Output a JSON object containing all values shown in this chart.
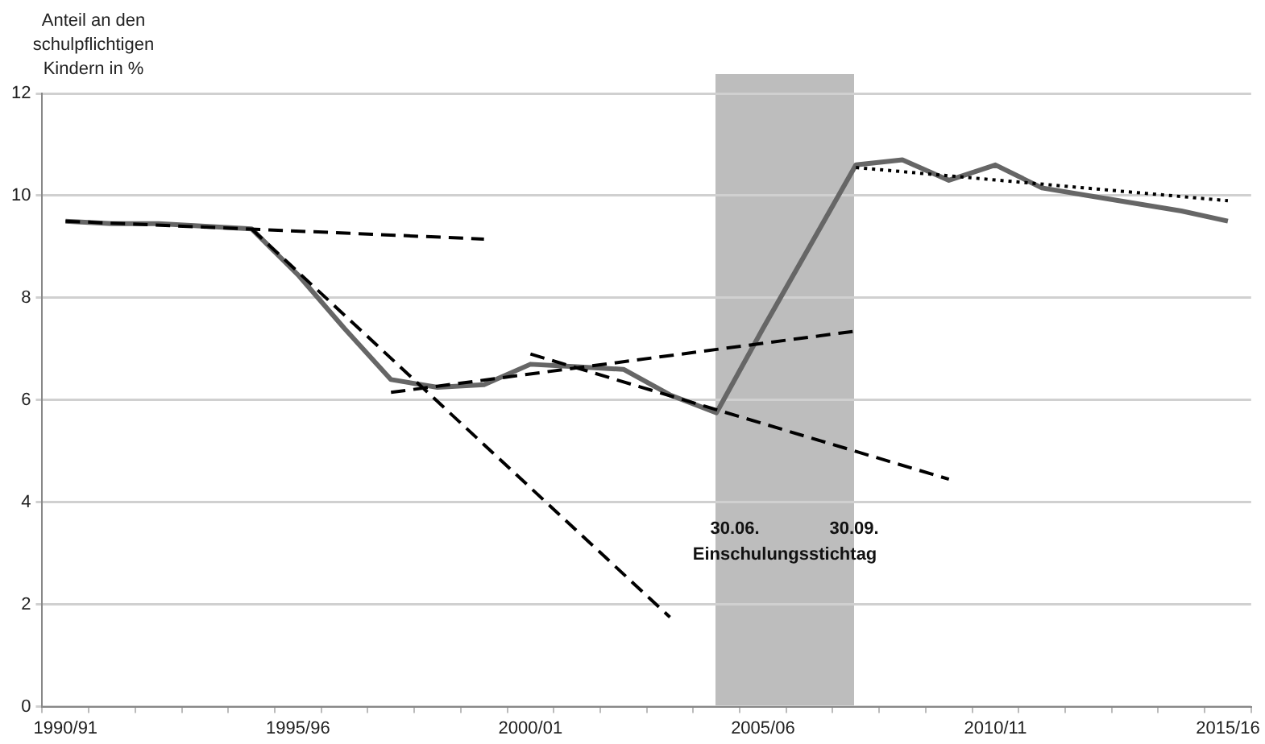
{
  "chart_data": {
    "type": "line",
    "ylabel": "Anteil an den schulpflichtigen Kindern in %",
    "categories": [
      "1990/91",
      null,
      null,
      null,
      null,
      "1995/96",
      null,
      null,
      null,
      null,
      "2000/01",
      null,
      null,
      null,
      null,
      "2005/06",
      null,
      null,
      null,
      null,
      "2010/11",
      null,
      null,
      null,
      null,
      "2015/16"
    ],
    "series": [
      {
        "color": "#666666",
        "line_style": "solid",
        "values": [
          9.5,
          9.45,
          9.45,
          9.4,
          9.35,
          8.45,
          7.4,
          6.4,
          6.25,
          6.3,
          6.7,
          6.65,
          6.6,
          6.1,
          5.75,
          7.4,
          9.0,
          10.6,
          10.7,
          10.3,
          10.6,
          10.15,
          10.0,
          9.85,
          9.7,
          9.5
        ]
      },
      {
        "color": "#000000",
        "line_style": "dashed",
        "values": [
          9.5,
          null,
          null,
          null,
          null,
          null,
          null,
          null,
          null,
          9.15,
          null,
          null,
          null,
          null,
          null,
          null,
          null,
          null,
          null,
          null,
          null,
          null,
          null,
          null,
          null,
          null
        ]
      },
      {
        "color": "#000000",
        "line_style": "dashed",
        "values": [
          null,
          null,
          null,
          null,
          9.35,
          null,
          null,
          null,
          null,
          null,
          null,
          null,
          null,
          1.75,
          null,
          null,
          null,
          null,
          null,
          null,
          null,
          null,
          null,
          null,
          null,
          null
        ]
      },
      {
        "color": "#000000",
        "line_style": "dashed",
        "values": [
          null,
          null,
          null,
          null,
          null,
          null,
          null,
          6.15,
          null,
          null,
          null,
          null,
          null,
          null,
          null,
          null,
          null,
          7.35,
          null,
          null,
          null,
          null,
          null,
          null,
          null,
          null
        ]
      },
      {
        "color": "#000000",
        "line_style": "dashed",
        "values": [
          null,
          null,
          null,
          null,
          null,
          null,
          null,
          null,
          null,
          null,
          6.9,
          null,
          null,
          null,
          null,
          null,
          null,
          null,
          null,
          4.45,
          null,
          null,
          null,
          null,
          null,
          null
        ]
      },
      {
        "color": "#000000",
        "line_style": "dotted",
        "values": [
          null,
          null,
          null,
          null,
          null,
          null,
          null,
          null,
          null,
          null,
          null,
          null,
          null,
          null,
          null,
          null,
          null,
          10.55,
          null,
          null,
          null,
          null,
          null,
          null,
          null,
          9.9
        ]
      }
    ],
    "ylim": [
      0,
      12
    ],
    "yticks": [
      0,
      2,
      4,
      6,
      8,
      10,
      12
    ],
    "annotations": [
      "30.06.",
      "30.09.",
      "Einschulungsstichtag"
    ],
    "grid": "y",
    "legend": false,
    "marker": "none"
  }
}
